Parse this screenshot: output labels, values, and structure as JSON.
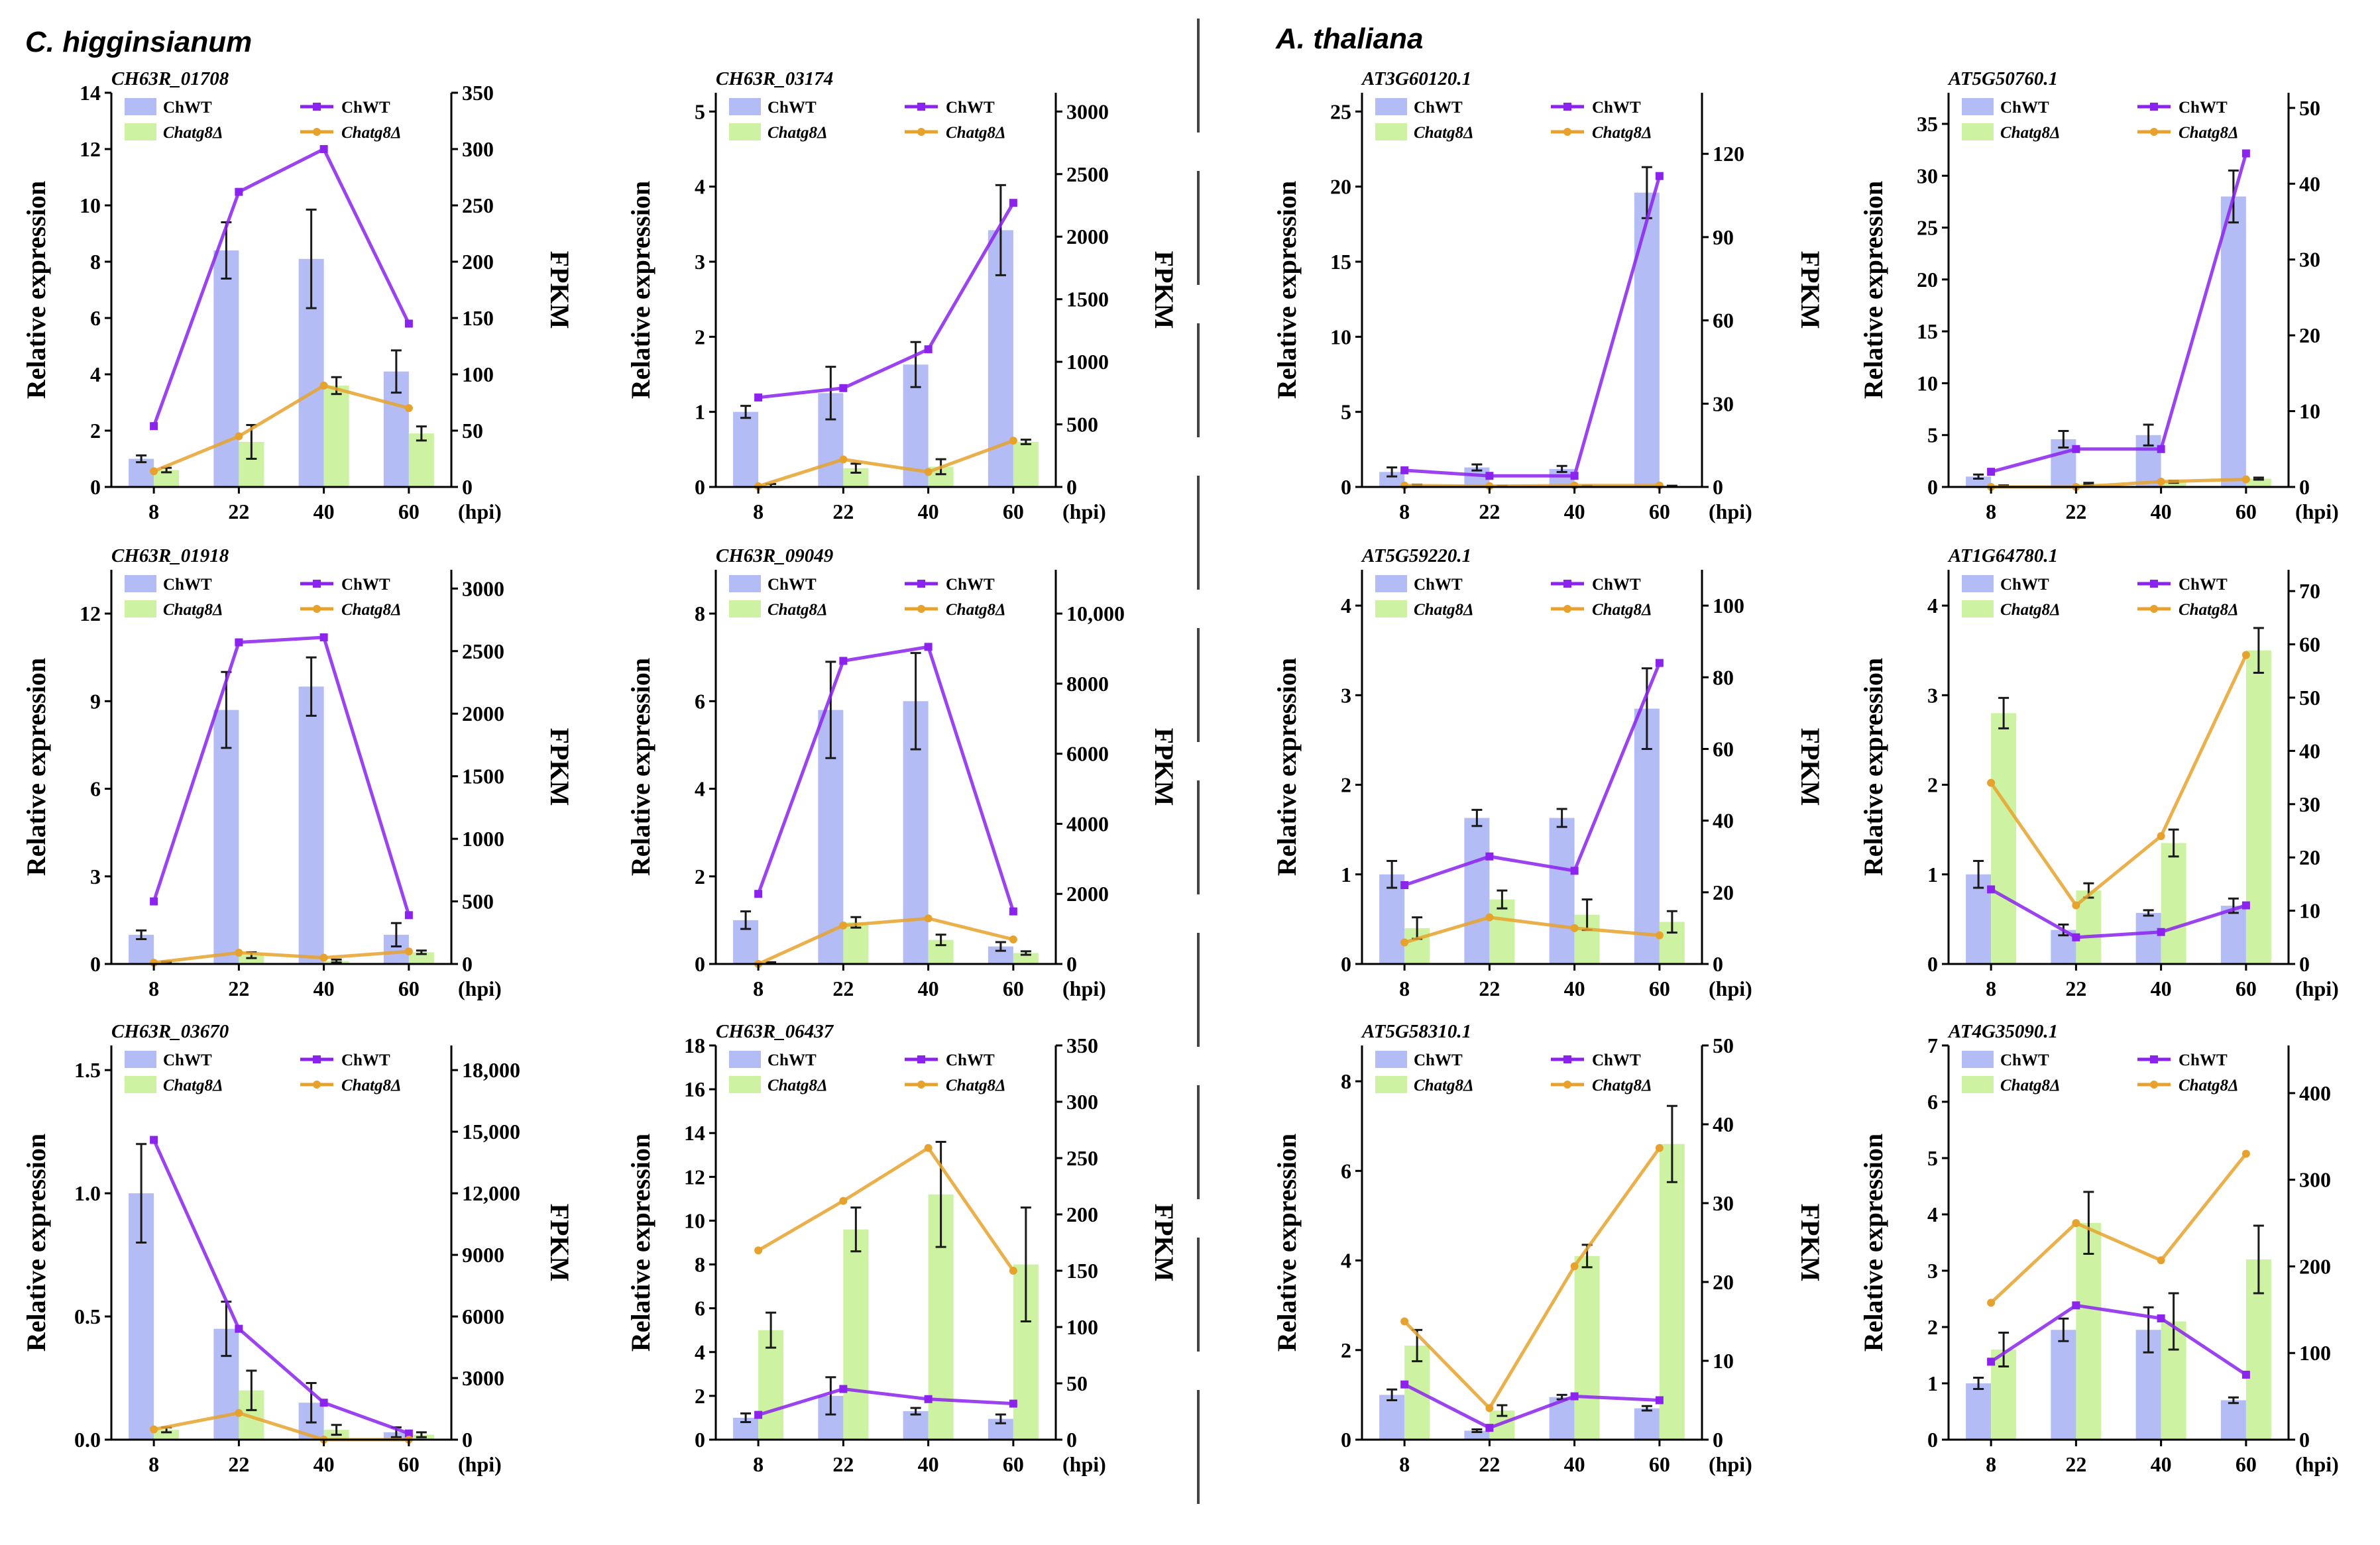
{
  "species_left": "C. higginsianum",
  "species_right": "A. thaliana",
  "legend": {
    "bar_wt": "ChWT",
    "bar_mut": "Chatg8Δ",
    "line_wt": "ChWT",
    "line_mut": "Chatg8Δ"
  },
  "x_unit": "(hpi)",
  "ylabel_left": "Relative expression",
  "ylabel_right": "FPKM",
  "colors": {
    "bar_wt": "#b3bcf4",
    "bar_mut": "#cdf3a2",
    "line_wt": "#8b22ee",
    "line_mut": "#e6a22c",
    "axis": "#000000"
  },
  "chart_data": [
    {
      "type": "bar",
      "title": "CH63R_01708",
      "categories": [
        "8",
        "22",
        "40",
        "60"
      ],
      "xlabel": "(hpi)",
      "ylabel": "Relative expression",
      "y2label": "FPKM",
      "ylim": [
        0,
        14
      ],
      "yticks": [
        0,
        2,
        4,
        6,
        8,
        10,
        12,
        14
      ],
      "y2lim": [
        0,
        350
      ],
      "y2ticks": [
        0,
        50,
        100,
        150,
        200,
        250,
        300,
        350
      ],
      "y2tick_labels": [
        "0",
        "50",
        "100",
        "150",
        "200",
        "250",
        "300",
        "350"
      ],
      "series": [
        {
          "name": "ChWT",
          "kind": "bar",
          "values": [
            1.0,
            8.4,
            8.1,
            4.1
          ],
          "errors": [
            0.12,
            1.0,
            1.75,
            0.75
          ]
        },
        {
          "name": "Chatg8Δ",
          "kind": "bar",
          "values": [
            0.6,
            1.6,
            3.6,
            1.9
          ],
          "errors": [
            0.08,
            0.6,
            0.3,
            0.25
          ]
        },
        {
          "name": "ChWT",
          "kind": "line",
          "values": [
            54,
            262,
            300,
            145
          ]
        },
        {
          "name": "Chatg8Δ",
          "kind": "line",
          "values": [
            14,
            45,
            90,
            70
          ]
        }
      ]
    },
    {
      "type": "bar",
      "title": "CH63R_03174",
      "categories": [
        "8",
        "22",
        "40",
        "60"
      ],
      "xlabel": "(hpi)",
      "ylabel": "Relative expression",
      "y2label": "FPKM",
      "ylim": [
        0,
        5.25
      ],
      "yticks": [
        0,
        1,
        2,
        3,
        4,
        5
      ],
      "y2lim": [
        0,
        3150
      ],
      "y2ticks": [
        0,
        500,
        1000,
        1500,
        2000,
        2500,
        3000
      ],
      "y2tick_labels": [
        "0",
        "500",
        "1000",
        "1500",
        "2000",
        "2500",
        "3000"
      ],
      "series": [
        {
          "name": "ChWT",
          "kind": "bar",
          "values": [
            1.0,
            1.25,
            1.63,
            3.42
          ],
          "errors": [
            0.08,
            0.35,
            0.3,
            0.6
          ]
        },
        {
          "name": "Chatg8Δ",
          "kind": "bar",
          "values": [
            0.02,
            0.25,
            0.27,
            0.6
          ],
          "errors": [
            0.02,
            0.06,
            0.1,
            0.03
          ]
        },
        {
          "name": "ChWT",
          "kind": "line",
          "values": [
            715,
            790,
            1100,
            2270
          ]
        },
        {
          "name": "Chatg8Δ",
          "kind": "line",
          "values": [
            5,
            220,
            120,
            370
          ]
        }
      ]
    },
    {
      "type": "bar",
      "title": "AT3G60120.1",
      "categories": [
        "8",
        "22",
        "40",
        "60"
      ],
      "xlabel": "(hpi)",
      "ylabel": "Relative expression",
      "y2label": "FPKM",
      "ylim": [
        0,
        26.25
      ],
      "yticks": [
        0,
        5,
        10,
        15,
        20,
        25
      ],
      "y2lim": [
        0,
        142
      ],
      "y2ticks": [
        0,
        30,
        60,
        90,
        120
      ],
      "y2tick_labels": [
        "0",
        "30",
        "60",
        "90",
        "120"
      ],
      "series": [
        {
          "name": "ChWT",
          "kind": "bar",
          "values": [
            1.0,
            1.3,
            1.2,
            19.6
          ],
          "errors": [
            0.3,
            0.2,
            0.2,
            1.7
          ]
        },
        {
          "name": "Chatg8Δ",
          "kind": "bar",
          "values": [
            0.1,
            0.05,
            0.05,
            0.05
          ],
          "errors": [
            0.05,
            0.03,
            0.03,
            0.03
          ]
        },
        {
          "name": "ChWT",
          "kind": "line",
          "values": [
            6,
            4,
            4,
            112
          ]
        },
        {
          "name": "Chatg8Δ",
          "kind": "line",
          "values": [
            0.5,
            0.3,
            0.5,
            0.5
          ]
        }
      ]
    },
    {
      "type": "bar",
      "title": "AT5G50760.1",
      "categories": [
        "8",
        "22",
        "40",
        "60"
      ],
      "xlabel": "(hpi)",
      "ylabel": "Relative expression",
      "y2label": "FPKM",
      "ylim": [
        0,
        38
      ],
      "yticks": [
        0,
        5,
        10,
        15,
        20,
        25,
        30,
        35
      ],
      "y2lim": [
        0,
        52
      ],
      "y2ticks": [
        0,
        10,
        20,
        30,
        40,
        50
      ],
      "y2tick_labels": [
        "0",
        "10",
        "20",
        "30",
        "40",
        "50"
      ],
      "series": [
        {
          "name": "ChWT",
          "kind": "bar",
          "values": [
            1.0,
            4.6,
            5.0,
            28.0
          ],
          "errors": [
            0.2,
            0.8,
            1.0,
            2.5
          ]
        },
        {
          "name": "Chatg8Δ",
          "kind": "bar",
          "values": [
            0.1,
            0.3,
            0.5,
            0.8
          ],
          "errors": [
            0.05,
            0.1,
            0.1,
            0.1
          ]
        },
        {
          "name": "ChWT",
          "kind": "line",
          "values": [
            2,
            5,
            5,
            44
          ]
        },
        {
          "name": "Chatg8Δ",
          "kind": "line",
          "values": [
            0,
            0,
            0.7,
            1
          ]
        }
      ]
    },
    {
      "type": "bar",
      "title": "CH63R_01918",
      "categories": [
        "8",
        "22",
        "40",
        "60"
      ],
      "xlabel": "(hpi)",
      "ylabel": "Relative expression",
      "y2label": "FPKM",
      "ylim": [
        0,
        13.5
      ],
      "yticks": [
        0,
        3,
        6,
        9,
        12
      ],
      "y2lim": [
        0,
        3150
      ],
      "y2ticks": [
        0,
        500,
        1000,
        1500,
        2000,
        2500,
        3000
      ],
      "y2tick_labels": [
        "0",
        "500",
        "1000",
        "1500",
        "2000",
        "2500",
        "3000"
      ],
      "series": [
        {
          "name": "ChWT",
          "kind": "bar",
          "values": [
            1.0,
            8.7,
            9.5,
            1.0
          ],
          "errors": [
            0.15,
            1.3,
            1.0,
            0.4
          ]
        },
        {
          "name": "Chatg8Δ",
          "kind": "bar",
          "values": [
            0.05,
            0.3,
            0.1,
            0.4
          ],
          "errors": [
            0.03,
            0.1,
            0.05,
            0.06
          ]
        },
        {
          "name": "ChWT",
          "kind": "line",
          "values": [
            500,
            2570,
            2610,
            390
          ]
        },
        {
          "name": "Chatg8Δ",
          "kind": "line",
          "values": [
            10,
            90,
            50,
            100
          ]
        }
      ]
    },
    {
      "type": "bar",
      "title": "CH63R_09049",
      "categories": [
        "8",
        "22",
        "40",
        "60"
      ],
      "xlabel": "(hpi)",
      "ylabel": "Relative expression",
      "y2label": "FPKM",
      "ylim": [
        0,
        9
      ],
      "yticks": [
        0,
        2,
        4,
        6,
        8
      ],
      "y2lim": [
        0,
        11250
      ],
      "y2ticks": [
        0,
        2000,
        4000,
        6000,
        8000,
        10000
      ],
      "y2tick_labels": [
        "0",
        "2000",
        "4000",
        "6000",
        "8000",
        "10,000"
      ],
      "series": [
        {
          "name": "ChWT",
          "kind": "bar",
          "values": [
            1.0,
            5.8,
            6.0,
            0.4
          ],
          "errors": [
            0.2,
            1.1,
            1.1,
            0.1
          ]
        },
        {
          "name": "Chatg8Δ",
          "kind": "bar",
          "values": [
            0.02,
            0.95,
            0.55,
            0.25
          ],
          "errors": [
            0.02,
            0.12,
            0.12,
            0.04
          ]
        },
        {
          "name": "ChWT",
          "kind": "line",
          "values": [
            2000,
            8650,
            9050,
            1500
          ]
        },
        {
          "name": "Chatg8Δ",
          "kind": "line",
          "values": [
            0,
            1100,
            1300,
            700
          ]
        }
      ]
    },
    {
      "type": "bar",
      "title": "AT5G59220.1",
      "categories": [
        "8",
        "22",
        "40",
        "60"
      ],
      "xlabel": "(hpi)",
      "ylabel": "Relative expression",
      "y2label": "FPKM",
      "ylim": [
        0,
        4.4
      ],
      "yticks": [
        0,
        1,
        2,
        3,
        4
      ],
      "y2lim": [
        0,
        110
      ],
      "y2ticks": [
        0,
        20,
        40,
        60,
        80,
        100
      ],
      "y2tick_labels": [
        "0",
        "20",
        "40",
        "60",
        "80",
        "100"
      ],
      "series": [
        {
          "name": "ChWT",
          "kind": "bar",
          "values": [
            1.0,
            1.63,
            1.63,
            2.85
          ],
          "errors": [
            0.15,
            0.09,
            0.1,
            0.45
          ]
        },
        {
          "name": "Chatg8Δ",
          "kind": "bar",
          "values": [
            0.4,
            0.72,
            0.55,
            0.47
          ],
          "errors": [
            0.12,
            0.1,
            0.17,
            0.12
          ]
        },
        {
          "name": "ChWT",
          "kind": "line",
          "values": [
            22,
            30,
            26,
            84
          ]
        },
        {
          "name": "Chatg8Δ",
          "kind": "line",
          "values": [
            6,
            13,
            10,
            8
          ]
        }
      ]
    },
    {
      "type": "bar",
      "title": "AT1G64780.1",
      "categories": [
        "8",
        "22",
        "40",
        "60"
      ],
      "xlabel": "(hpi)",
      "ylabel": "Relative expression",
      "y2label": "FPKM",
      "ylim": [
        0,
        4.4
      ],
      "yticks": [
        0,
        1,
        2,
        3,
        4
      ],
      "y2lim": [
        0,
        74
      ],
      "y2ticks": [
        0,
        10,
        20,
        30,
        40,
        50,
        60,
        70
      ],
      "y2tick_labels": [
        "0",
        "10",
        "20",
        "30",
        "40",
        "50",
        "60",
        "70"
      ],
      "series": [
        {
          "name": "ChWT",
          "kind": "bar",
          "values": [
            1.0,
            0.38,
            0.57,
            0.65
          ],
          "errors": [
            0.15,
            0.06,
            0.03,
            0.08
          ]
        },
        {
          "name": "Chatg8Δ",
          "kind": "bar",
          "values": [
            2.8,
            0.82,
            1.35,
            3.5
          ],
          "errors": [
            0.17,
            0.08,
            0.15,
            0.25
          ]
        },
        {
          "name": "ChWT",
          "kind": "line",
          "values": [
            14,
            5,
            6,
            11
          ]
        },
        {
          "name": "Chatg8Δ",
          "kind": "line",
          "values": [
            34,
            11,
            24,
            58
          ]
        }
      ]
    },
    {
      "type": "bar",
      "title": "CH63R_03670",
      "categories": [
        "8",
        "22",
        "40",
        "60"
      ],
      "xlabel": "(hpi)",
      "ylabel": "Relative expression",
      "y2label": "FPKM",
      "ylim": [
        0,
        1.6
      ],
      "yticks": [
        0,
        0.5,
        1.0,
        1.5
      ],
      "ytick_labels": [
        "0.0",
        "0.5",
        "1.0",
        "1.5"
      ],
      "y2lim": [
        0,
        19200
      ],
      "y2ticks": [
        0,
        3000,
        6000,
        9000,
        12000,
        15000,
        18000
      ],
      "y2tick_labels": [
        "0",
        "3000",
        "6000",
        "9000",
        "12,000",
        "15,000",
        "18,000"
      ],
      "series": [
        {
          "name": "ChWT",
          "kind": "bar",
          "values": [
            1.0,
            0.45,
            0.15,
            0.03
          ],
          "errors": [
            0.2,
            0.11,
            0.08,
            0.02
          ]
        },
        {
          "name": "Chatg8Δ",
          "kind": "bar",
          "values": [
            0.04,
            0.2,
            0.04,
            0.02
          ],
          "errors": [
            0.01,
            0.08,
            0.02,
            0.01
          ]
        },
        {
          "name": "ChWT",
          "kind": "line",
          "values": [
            14600,
            5400,
            1800,
            300
          ]
        },
        {
          "name": "Chatg8Δ",
          "kind": "line",
          "values": [
            500,
            1300,
            0,
            0
          ]
        }
      ]
    },
    {
      "type": "bar",
      "title": "CH63R_06437",
      "categories": [
        "8",
        "22",
        "40",
        "60"
      ],
      "xlabel": "(hpi)",
      "ylabel": "Relative expression",
      "y2label": "FPKM",
      "ylim": [
        0,
        18
      ],
      "yticks": [
        0,
        2,
        4,
        6,
        8,
        10,
        12,
        14,
        16,
        18
      ],
      "y2lim": [
        0,
        350
      ],
      "y2ticks": [
        0,
        50,
        100,
        150,
        200,
        250,
        300,
        350
      ],
      "y2tick_labels": [
        "0",
        "50",
        "100",
        "150",
        "200",
        "250",
        "300",
        "350"
      ],
      "series": [
        {
          "name": "ChWT",
          "kind": "bar",
          "values": [
            1.0,
            2.0,
            1.3,
            0.95
          ],
          "errors": [
            0.2,
            0.85,
            0.15,
            0.2
          ]
        },
        {
          "name": "Chatg8Δ",
          "kind": "bar",
          "values": [
            5.0,
            9.6,
            11.2,
            8.0
          ],
          "errors": [
            0.8,
            1.0,
            2.4,
            2.6
          ]
        },
        {
          "name": "ChWT",
          "kind": "line",
          "values": [
            22,
            45,
            36,
            32
          ]
        },
        {
          "name": "Chatg8Δ",
          "kind": "line",
          "values": [
            168,
            212,
            259,
            150
          ]
        }
      ]
    },
    {
      "type": "bar",
      "title": "AT5G58310.1",
      "categories": [
        "8",
        "22",
        "40",
        "60"
      ],
      "xlabel": "(hpi)",
      "ylabel": "Relative expression",
      "y2label": "FPKM",
      "ylim": [
        0,
        8.8
      ],
      "yticks": [
        0,
        2,
        4,
        6,
        8
      ],
      "y2lim": [
        0,
        50
      ],
      "y2ticks": [
        0,
        10,
        20,
        30,
        40,
        50
      ],
      "y2tick_labels": [
        "0",
        "10",
        "20",
        "30",
        "40",
        "50"
      ],
      "series": [
        {
          "name": "ChWT",
          "kind": "bar",
          "values": [
            1.0,
            0.2,
            0.95,
            0.7
          ],
          "errors": [
            0.12,
            0.03,
            0.05,
            0.05
          ]
        },
        {
          "name": "Chatg8Δ",
          "kind": "bar",
          "values": [
            2.1,
            0.65,
            4.1,
            6.6
          ],
          "errors": [
            0.35,
            0.12,
            0.25,
            0.85
          ]
        },
        {
          "name": "ChWT",
          "kind": "line",
          "values": [
            7,
            1.5,
            5.5,
            5
          ]
        },
        {
          "name": "Chatg8Δ",
          "kind": "line",
          "values": [
            15,
            4,
            22,
            37
          ]
        }
      ]
    },
    {
      "type": "bar",
      "title": "AT4G35090.1",
      "categories": [
        "8",
        "22",
        "40",
        "60"
      ],
      "xlabel": "(hpi)",
      "ylabel": "Relative expression",
      "y2label": "FPKM",
      "ylim": [
        0,
        7
      ],
      "yticks": [
        0,
        1,
        2,
        3,
        4,
        5,
        6,
        7
      ],
      "y2lim": [
        0,
        455
      ],
      "y2ticks": [
        0,
        100,
        200,
        300,
        400
      ],
      "y2tick_labels": [
        "0",
        "100",
        "200",
        "300",
        "400"
      ],
      "series": [
        {
          "name": "ChWT",
          "kind": "bar",
          "values": [
            1.0,
            1.95,
            1.95,
            0.7
          ],
          "errors": [
            0.1,
            0.2,
            0.4,
            0.05
          ]
        },
        {
          "name": "Chatg8Δ",
          "kind": "bar",
          "values": [
            1.6,
            3.85,
            2.1,
            3.2
          ],
          "errors": [
            0.3,
            0.55,
            0.5,
            0.6
          ]
        },
        {
          "name": "ChWT",
          "kind": "line",
          "values": [
            90,
            155,
            140,
            75
          ]
        },
        {
          "name": "Chatg8Δ",
          "kind": "line",
          "values": [
            158,
            250,
            207,
            330
          ]
        }
      ]
    }
  ]
}
